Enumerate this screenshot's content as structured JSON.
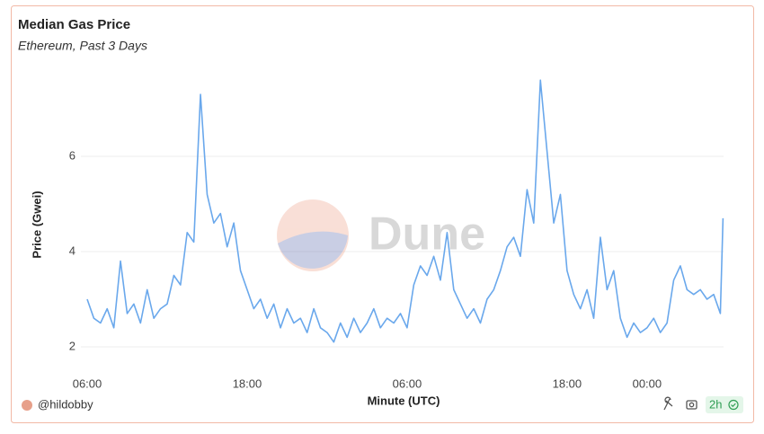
{
  "chart_data": {
    "type": "line",
    "title": "Median Gas Price",
    "subtitle": "Ethereum, Past 3 Days",
    "xlabel": "Minute (UTC)",
    "ylabel": "Price (Gwei)",
    "watermark": "Dune",
    "author": "@hildobby",
    "refresh": "2h",
    "color": "#6aa8ec",
    "grid": true,
    "xlim": [
      -0.3,
      47.7
    ],
    "xticks": [
      {
        "value": 0,
        "label": "06:00"
      },
      {
        "value": 12,
        "label": "18:00"
      },
      {
        "value": 24,
        "label": "06:00"
      },
      {
        "value": 36,
        "label": "18:00"
      },
      {
        "value": 42,
        "label": "00:00"
      }
    ],
    "ylim": [
      1.6,
      7.8
    ],
    "yticks": [
      2,
      4,
      6
    ],
    "x": [
      0,
      0.5,
      1,
      1.5,
      2,
      2.5,
      3,
      3.5,
      4,
      4.5,
      5,
      5.5,
      6,
      6.5,
      7,
      7.5,
      8,
      8.5,
      9,
      9.5,
      10,
      10.5,
      11,
      11.5,
      12,
      12.5,
      13,
      13.5,
      14,
      14.5,
      15,
      15.5,
      16,
      16.5,
      17,
      17.5,
      18,
      18.5,
      19,
      19.5,
      20,
      20.5,
      21,
      21.5,
      22,
      22.5,
      23,
      23.5,
      24,
      24.5,
      25,
      25.5,
      26,
      26.5,
      27,
      27.5,
      28,
      28.5,
      29,
      29.5,
      30,
      30.5,
      31,
      31.5,
      32,
      32.5,
      33,
      33.5,
      34,
      34.5,
      35,
      35.5,
      36,
      36.5,
      37,
      37.5,
      38,
      38.5,
      39,
      39.5,
      40,
      40.5,
      41,
      41.5,
      42,
      42.5,
      43,
      43.5,
      44,
      44.5,
      45,
      45.5,
      46,
      46.5,
      47,
      47.5,
      47.7
    ],
    "values": [
      3.0,
      2.6,
      2.5,
      2.8,
      2.4,
      3.8,
      2.7,
      2.9,
      2.5,
      3.2,
      2.6,
      2.8,
      2.9,
      3.5,
      3.3,
      4.4,
      4.2,
      7.3,
      5.2,
      4.6,
      4.8,
      4.1,
      4.6,
      3.6,
      3.2,
      2.8,
      3.0,
      2.6,
      2.9,
      2.4,
      2.8,
      2.5,
      2.6,
      2.3,
      2.8,
      2.4,
      2.3,
      2.1,
      2.5,
      2.2,
      2.6,
      2.3,
      2.5,
      2.8,
      2.4,
      2.6,
      2.5,
      2.7,
      2.4,
      3.3,
      3.7,
      3.5,
      3.9,
      3.4,
      4.4,
      3.2,
      2.9,
      2.6,
      2.8,
      2.5,
      3.0,
      3.2,
      3.6,
      4.1,
      4.3,
      3.9,
      5.3,
      4.6,
      7.6,
      6.1,
      4.6,
      5.2,
      3.6,
      3.1,
      2.8,
      3.2,
      2.6,
      4.3,
      3.2,
      3.6,
      2.6,
      2.2,
      2.5,
      2.3,
      2.4,
      2.6,
      2.3,
      2.5,
      3.4,
      3.7,
      3.2,
      3.1,
      3.2,
      3.0,
      3.1,
      2.7,
      4.7
    ]
  }
}
